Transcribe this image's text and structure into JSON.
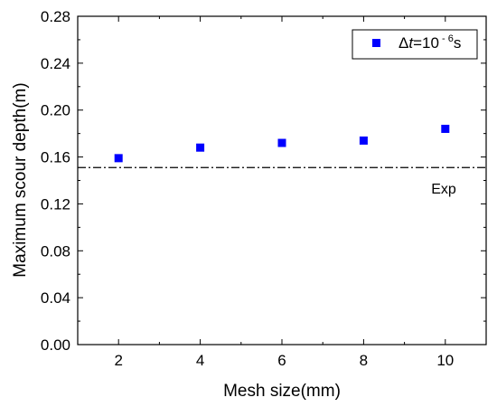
{
  "chart_data": {
    "type": "scatter",
    "title": "",
    "xlabel": "Mesh size(mm)",
    "ylabel": "Maximum scour depth(m)",
    "xlim": [
      1,
      11
    ],
    "ylim": [
      0,
      0.28
    ],
    "x_ticks": [
      2,
      4,
      6,
      8,
      10
    ],
    "x_tick_labels": [
      "2",
      "4",
      "6",
      "8",
      "10"
    ],
    "y_ticks": [
      0,
      0.04,
      0.08,
      0.12,
      0.16,
      0.2,
      0.24,
      0.28
    ],
    "y_tick_labels": [
      "0.00",
      "0.04",
      "0.08",
      "0.12",
      "0.16",
      "0.20",
      "0.24",
      "0.28"
    ],
    "grid": false,
    "legend_position": "top-right",
    "series": [
      {
        "name": "Δt=10⁻⁶s",
        "legend_prefix": "Δ",
        "legend_italic": "t",
        "legend_middle": "=10",
        "legend_superscript": " - 6",
        "legend_suffix": "s",
        "color": "#0000ff",
        "marker": "square",
        "x": [
          2,
          4,
          6,
          8,
          10
        ],
        "y": [
          0.159,
          0.168,
          0.172,
          0.174,
          0.184
        ]
      }
    ],
    "reference_line": {
      "label": "Exp",
      "y": 0.151,
      "style": "dash-dot",
      "color": "#000000"
    }
  }
}
